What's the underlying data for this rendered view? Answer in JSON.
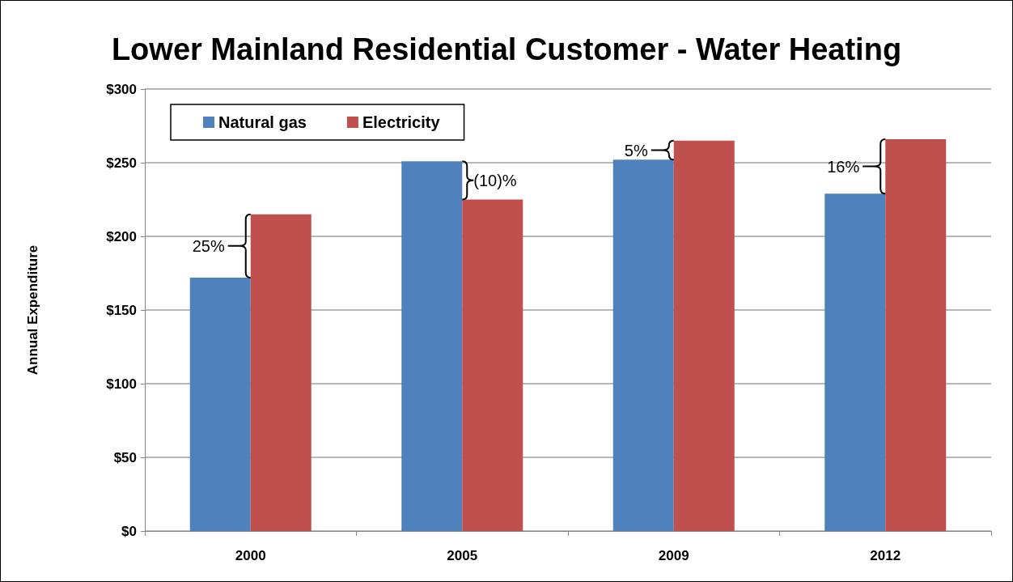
{
  "chart_data": {
    "type": "bar",
    "title": "Lower Mainland Residential Customer - Water Heating",
    "ylabel": "Annual Expenditure",
    "categories": [
      "2000",
      "2005",
      "2009",
      "2012"
    ],
    "series": [
      {
        "name": "Natural gas",
        "color": "#4f81bd",
        "values": [
          172,
          251,
          252,
          229
        ]
      },
      {
        "name": "Electricity",
        "color": "#c0504d",
        "values": [
          215,
          225,
          265,
          266
        ]
      }
    ],
    "ylim": [
      0,
      300
    ],
    "yticks": [
      {
        "value": 0,
        "label": "$0"
      },
      {
        "value": 50,
        "label": "$50"
      },
      {
        "value": 100,
        "label": "$100"
      },
      {
        "value": 150,
        "label": "$150"
      },
      {
        "value": 200,
        "label": "$200"
      },
      {
        "value": 250,
        "label": "$250"
      },
      {
        "value": 300,
        "label": "$300"
      }
    ],
    "annotations": [
      {
        "text": "25%",
        "x": "2000",
        "y": 193.5
      },
      {
        "text": "(10)%",
        "x": "2005",
        "y": 238
      },
      {
        "text": "5%",
        "x": "2009",
        "y": 258.5
      },
      {
        "text": "16%",
        "x": "2012",
        "y": 247.5
      }
    ],
    "grid": "y",
    "legend": "top left"
  }
}
